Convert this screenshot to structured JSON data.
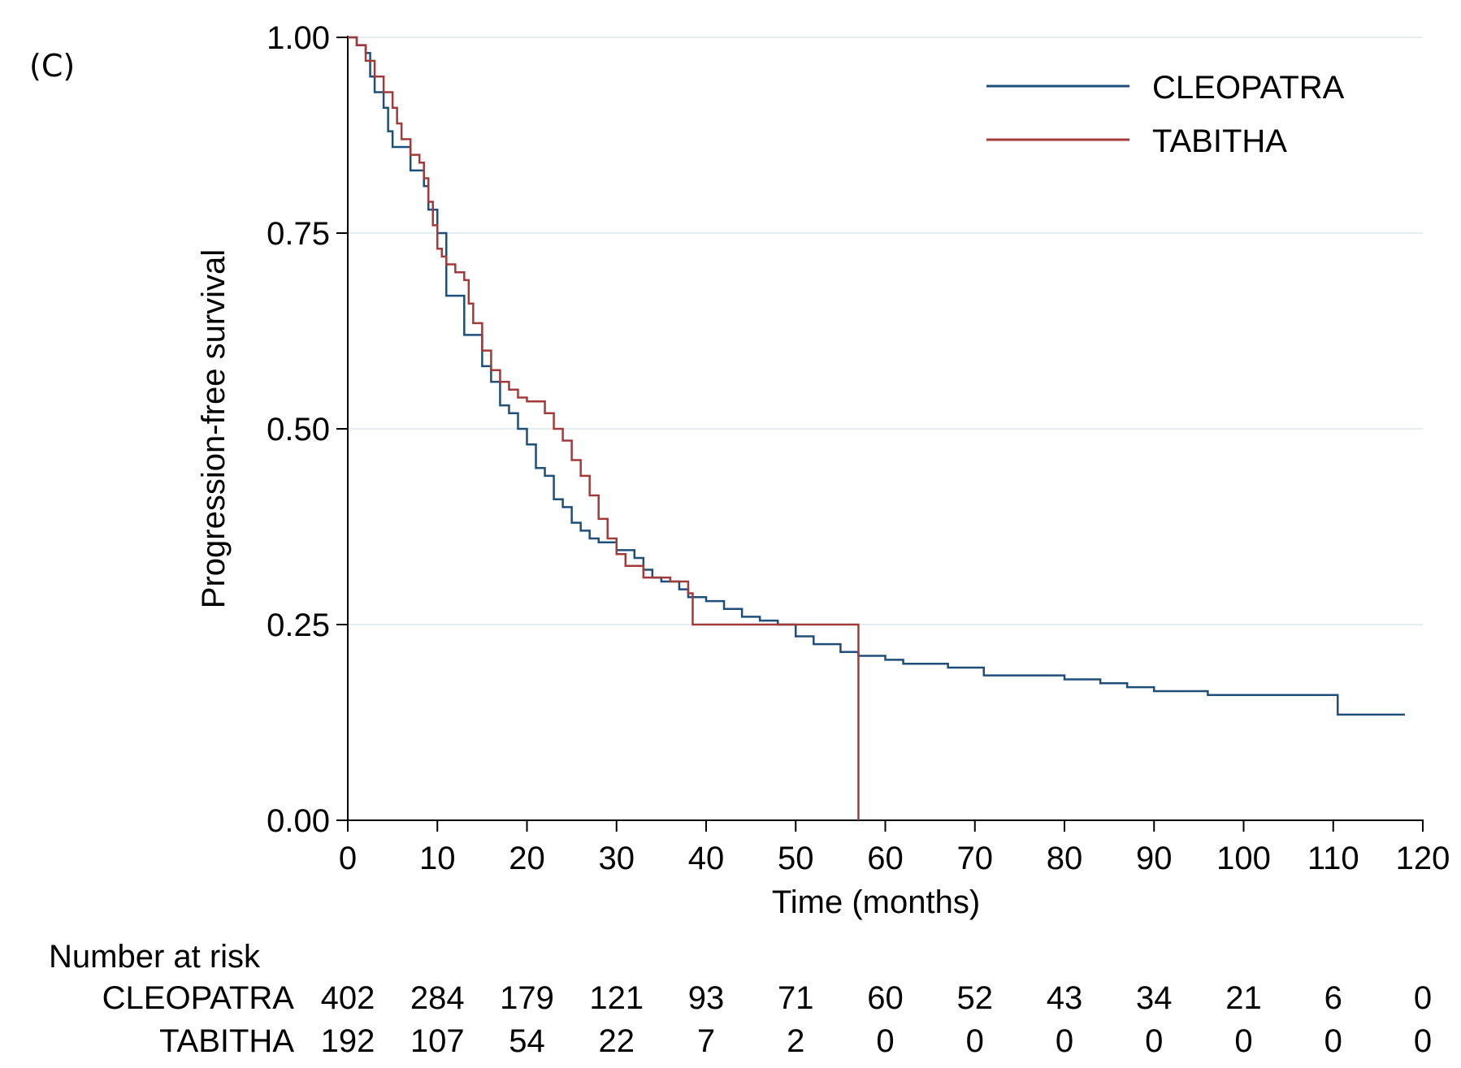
{
  "panel_label": "(C)",
  "chart_data": {
    "type": "line",
    "step": true,
    "xlabel": "Time (months)",
    "ylabel": "Progression-free survival",
    "xlim": [
      0,
      120
    ],
    "ylim": [
      0,
      1
    ],
    "x_ticks": [
      0,
      10,
      20,
      30,
      40,
      50,
      60,
      70,
      80,
      90,
      100,
      110,
      120
    ],
    "y_ticks": [
      "0.00",
      "0.25",
      "0.50",
      "0.75",
      "1.00"
    ],
    "grid": "horizontal",
    "legend_position": "top-right",
    "series": [
      {
        "name": "CLEOPATRA",
        "color": "#1f4e79",
        "x": [
          0,
          1,
          2,
          2.5,
          3,
          4,
          4.5,
          5,
          5.5,
          6,
          7,
          8,
          8.5,
          9,
          10,
          11,
          12,
          13,
          14,
          15,
          16,
          17,
          18,
          19,
          20,
          21,
          22,
          23,
          24,
          25,
          26,
          27,
          28,
          30,
          32,
          33,
          34,
          35,
          37,
          38,
          40,
          42,
          44,
          46,
          48,
          50,
          52,
          55,
          57,
          60,
          62,
          67,
          71,
          75,
          80,
          84,
          87,
          90,
          96,
          100,
          105,
          110.5,
          118
        ],
        "y": [
          1.0,
          0.99,
          0.98,
          0.95,
          0.93,
          0.91,
          0.88,
          0.86,
          0.86,
          0.86,
          0.83,
          0.83,
          0.81,
          0.78,
          0.75,
          0.67,
          0.67,
          0.62,
          0.62,
          0.58,
          0.56,
          0.53,
          0.52,
          0.5,
          0.48,
          0.45,
          0.44,
          0.41,
          0.4,
          0.38,
          0.37,
          0.36,
          0.355,
          0.345,
          0.335,
          0.32,
          0.31,
          0.305,
          0.295,
          0.285,
          0.28,
          0.27,
          0.26,
          0.255,
          0.25,
          0.235,
          0.225,
          0.215,
          0.21,
          0.205,
          0.2,
          0.195,
          0.185,
          0.185,
          0.18,
          0.175,
          0.17,
          0.165,
          0.16,
          0.16,
          0.16,
          0.135,
          0.135
        ]
      },
      {
        "name": "TABITHA",
        "color": "#a33a3a",
        "x": [
          0,
          1,
          2,
          3,
          4,
          5,
          5.5,
          6,
          7,
          8,
          8.5,
          9,
          9.5,
          10,
          10.5,
          11,
          12,
          13,
          13.5,
          14,
          15,
          16,
          17,
          18,
          19,
          20,
          21,
          22,
          23,
          24,
          25,
          26,
          27,
          28,
          29,
          30,
          31,
          33,
          36,
          38,
          38.5,
          45,
          52,
          57
        ],
        "y": [
          1.0,
          0.99,
          0.97,
          0.95,
          0.93,
          0.91,
          0.89,
          0.87,
          0.85,
          0.84,
          0.82,
          0.79,
          0.76,
          0.73,
          0.72,
          0.71,
          0.7,
          0.69,
          0.66,
          0.635,
          0.6,
          0.575,
          0.56,
          0.55,
          0.54,
          0.535,
          0.535,
          0.52,
          0.5,
          0.485,
          0.46,
          0.44,
          0.415,
          0.385,
          0.36,
          0.34,
          0.325,
          0.31,
          0.305,
          0.29,
          0.25,
          0.25,
          0.25,
          0.0
        ]
      }
    ],
    "risk_table": {
      "title": "Number at risk",
      "rows": [
        {
          "label": "CLEOPATRA",
          "values": [
            "402",
            "284",
            "179",
            "121",
            "93",
            "71",
            "60",
            "52",
            "43",
            "34",
            "21",
            "6",
            "0"
          ]
        },
        {
          "label": "TABITHA",
          "values": [
            "192",
            "107",
            "54",
            "22",
            "7",
            "2",
            "0",
            "0",
            "0",
            "0",
            "0",
            "0",
            "0"
          ]
        }
      ]
    }
  }
}
